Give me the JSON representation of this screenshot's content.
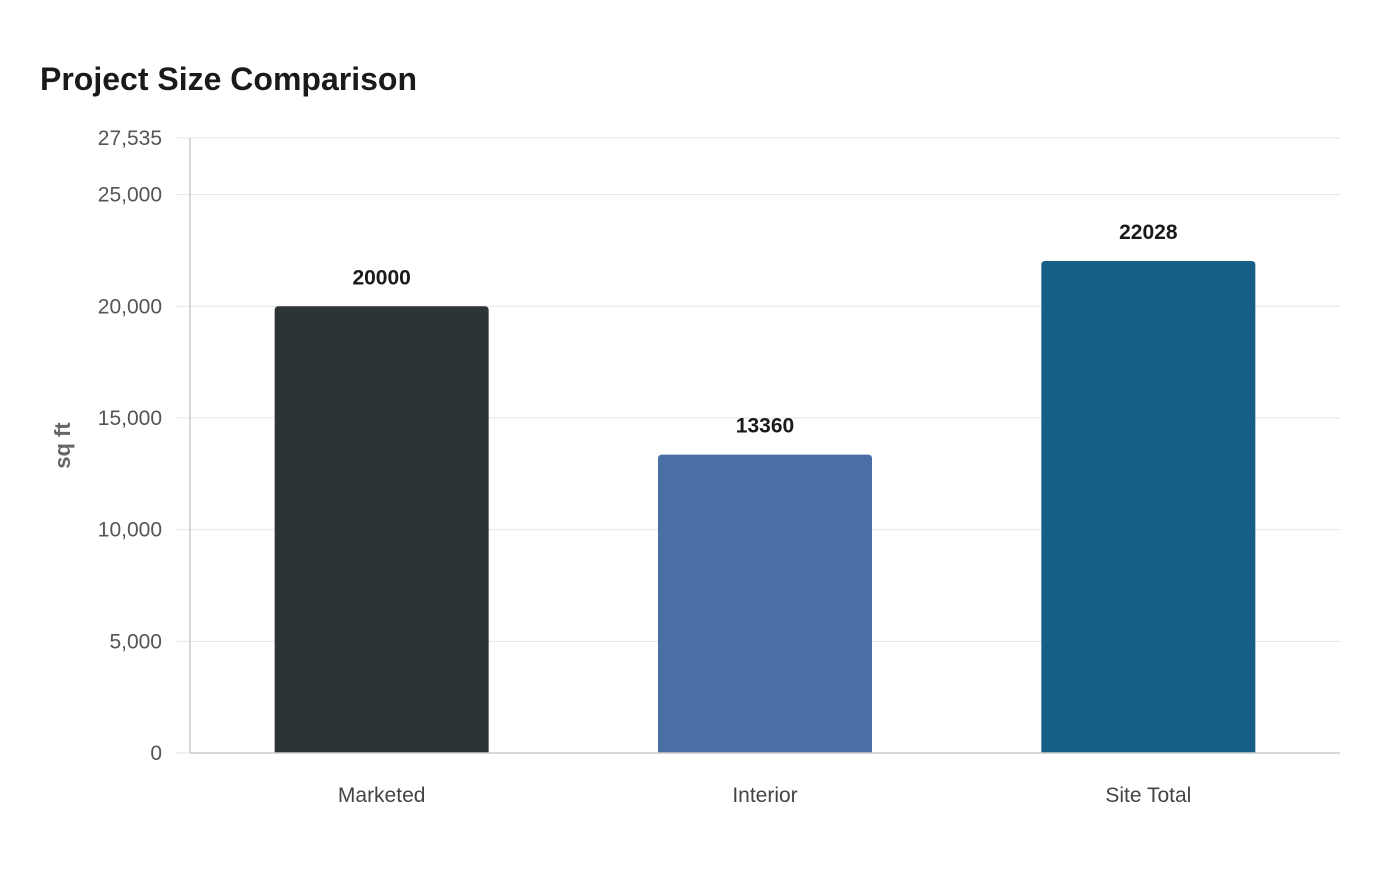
{
  "chart_data": {
    "type": "bar",
    "title": "Project Size Comparison",
    "xlabel": "",
    "ylabel": "sq ft",
    "categories": [
      "Marketed",
      "Interior",
      "Site Total"
    ],
    "values": [
      20000,
      13360,
      22028
    ],
    "value_labels": [
      "20000",
      "13360",
      "22028"
    ],
    "colors": [
      "#2d3436",
      "#4a6fa5",
      "#166088"
    ],
    "ylim": [
      0,
      27535
    ],
    "yticks": [
      0,
      5000,
      10000,
      15000,
      20000,
      25000,
      27535
    ],
    "ytick_labels": [
      "0",
      "5,000",
      "10,000",
      "15,000",
      "20,000",
      "25,000",
      "27,535"
    ],
    "grid": true,
    "legend": "none"
  }
}
